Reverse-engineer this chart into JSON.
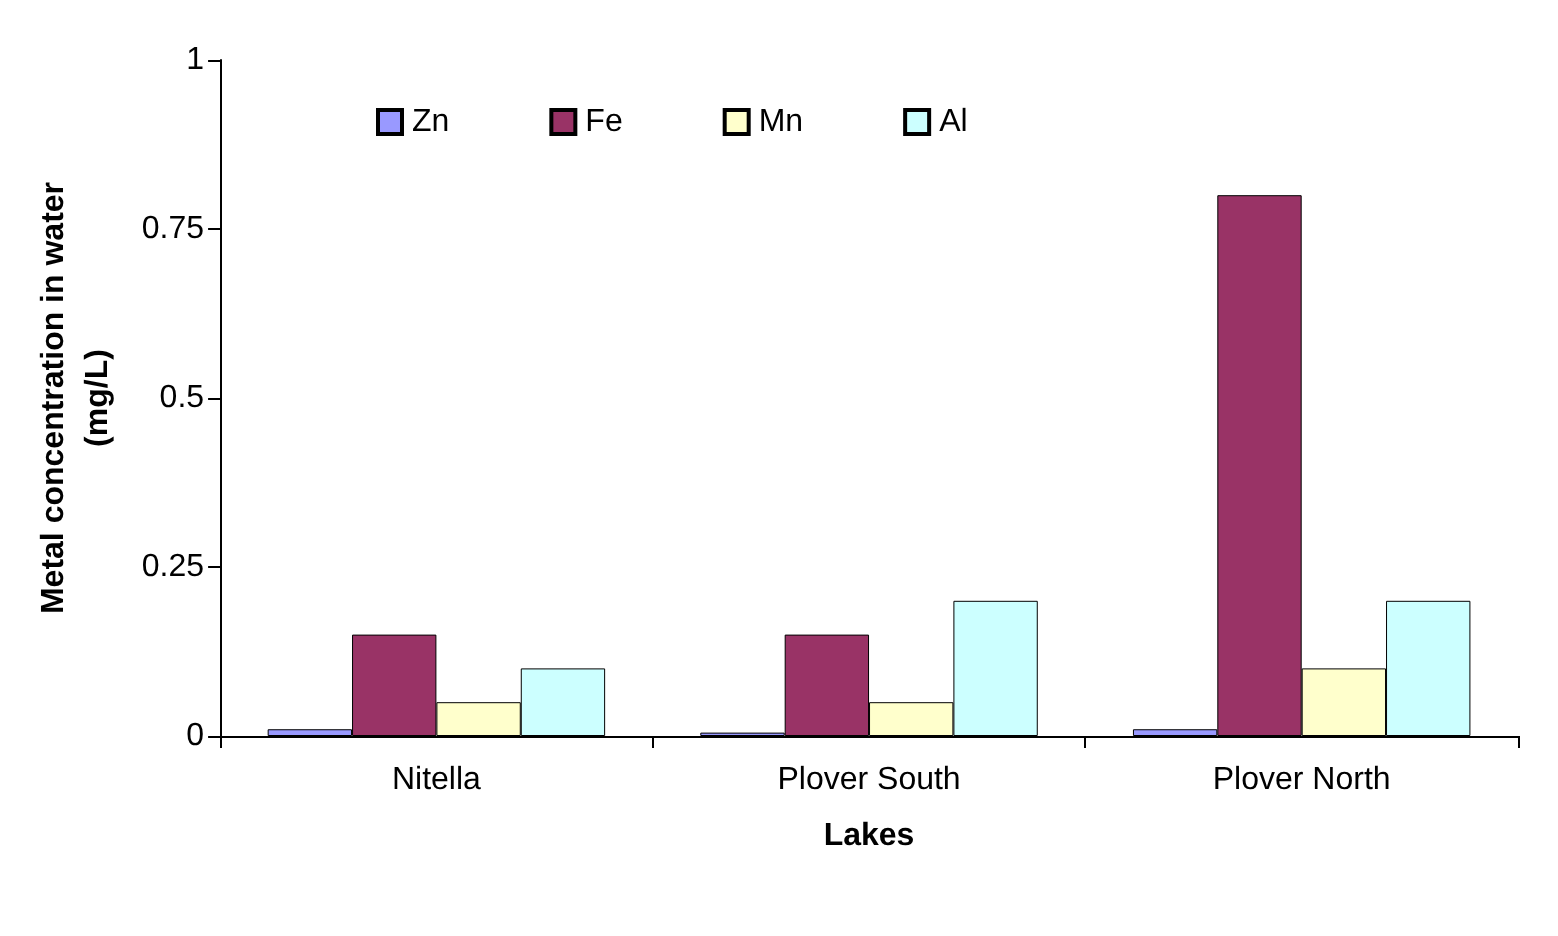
{
  "chart_data": {
    "type": "bar",
    "xlabel": "Lakes",
    "ylabel": "Metal concentration in water\n(mg/L)",
    "categories": [
      "Nitella",
      "Plover South",
      "Plover North"
    ],
    "series": [
      {
        "name": "Zn",
        "color": "#9999ff",
        "values": [
          0.01,
          0.005,
          0.01
        ]
      },
      {
        "name": "Fe",
        "color": "#993366",
        "values": [
          0.15,
          0.15,
          0.8
        ]
      },
      {
        "name": "Mn",
        "color": "#ffffcc",
        "values": [
          0.05,
          0.05,
          0.1
        ]
      },
      {
        "name": "Al",
        "color": "#ccffff",
        "values": [
          0.1,
          0.2,
          0.2
        ]
      }
    ],
    "ylim": [
      0,
      1
    ],
    "yticks": [
      0,
      0.25,
      0.5,
      0.75,
      1
    ],
    "grid": false,
    "legend": "top"
  }
}
